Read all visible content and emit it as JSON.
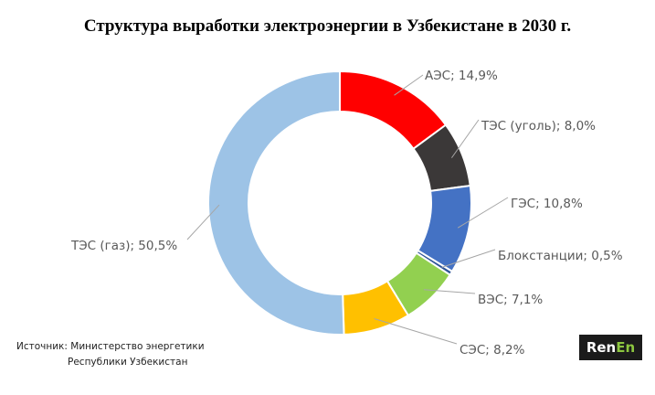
{
  "chart_data": {
    "type": "pie",
    "subtype": "donut",
    "title": "Структура  выработки электроэнергии в Узбекистане в 2030 г.",
    "slices": [
      {
        "name": "АЭС",
        "value": 14.9,
        "label": "АЭС; 14,9%",
        "color": "#ff0000"
      },
      {
        "name": "ТЭС (уголь)",
        "value": 8.0,
        "label": "ТЭС (уголь); 8,0%",
        "color": "#3b3838"
      },
      {
        "name": "ГЭС",
        "value": 10.8,
        "label": "ГЭС; 10,8%",
        "color": "#4472c4"
      },
      {
        "name": "Блокстанции",
        "value": 0.5,
        "label": "Блокстанции; 0,5%",
        "color": "#2f5597"
      },
      {
        "name": "ВЭС",
        "value": 7.1,
        "label": "ВЭС; 7,1%",
        "color": "#92d050"
      },
      {
        "name": "СЭС",
        "value": 8.2,
        "label": "СЭС; 8,2%",
        "color": "#ffc000"
      },
      {
        "name": "ТЭС (газ)",
        "value": 50.5,
        "label": "ТЭС (газ); 50,5%",
        "color": "#9dc3e6"
      }
    ]
  },
  "source": {
    "line1": "Источник: Министерство  энергетики",
    "line2": "Республики Узбекистан"
  },
  "logo": {
    "part1": "Ren",
    "part2": "En"
  }
}
